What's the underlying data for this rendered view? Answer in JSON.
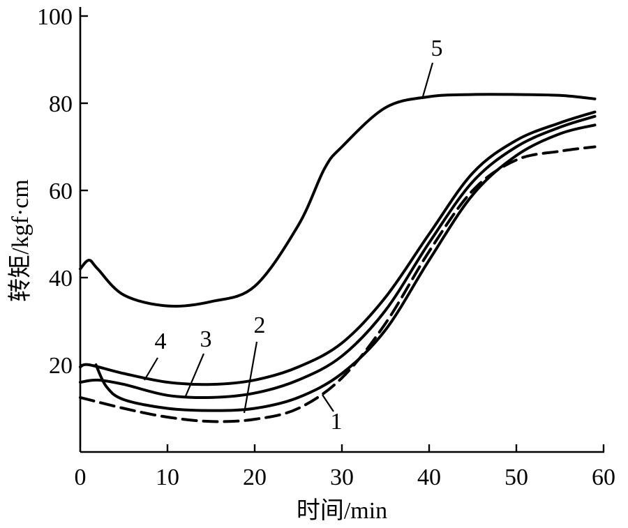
{
  "chart_data": {
    "type": "line",
    "title": "",
    "xlabel": "时间/min",
    "ylabel": "转矩/kgf·cm",
    "xlim": [
      0,
      60
    ],
    "ylim": [
      0,
      100
    ],
    "x_ticks": [
      "0",
      "10",
      "20",
      "30",
      "40",
      "50",
      "60"
    ],
    "y_ticks": [
      "20",
      "40",
      "60",
      "80",
      "100"
    ],
    "grid": false,
    "legend": "none",
    "series": [
      {
        "name": "1",
        "style": "dashed",
        "x": [
          0,
          5,
          10,
          15,
          20,
          25,
          30,
          35,
          40,
          45,
          50,
          55,
          59
        ],
        "y": [
          12.5,
          10,
          8,
          7,
          7.5,
          10,
          17,
          29.5,
          46,
          60,
          67,
          69,
          70
        ]
      },
      {
        "name": "2",
        "style": "solid",
        "x": [
          1.8,
          3,
          5,
          10,
          15,
          20,
          25,
          30,
          35,
          40,
          45,
          50,
          55,
          59
        ],
        "y": [
          20,
          15,
          12,
          10,
          9.5,
          10,
          12.5,
          18,
          28,
          44,
          59,
          68,
          73,
          75
        ]
      },
      {
        "name": "3",
        "style": "solid",
        "x": [
          0,
          2,
          5,
          10,
          15,
          20,
          25,
          30,
          35,
          40,
          45,
          50,
          55,
          59
        ],
        "y": [
          16,
          16.5,
          15.5,
          13,
          12.5,
          13.5,
          16.5,
          22,
          32.5,
          48,
          62,
          70,
          74.5,
          77
        ]
      },
      {
        "name": "4",
        "style": "solid",
        "x": [
          0,
          1,
          5,
          10,
          15,
          20,
          25,
          30,
          35,
          40,
          45,
          50,
          55,
          59
        ],
        "y": [
          19.5,
          20,
          18,
          16,
          15.5,
          16.5,
          19.5,
          25,
          35.5,
          50,
          64,
          71.5,
          75.5,
          78
        ]
      },
      {
        "name": "5",
        "style": "solid",
        "x": [
          0,
          1,
          2,
          5,
          10,
          15,
          20,
          25,
          28,
          30,
          35,
          40,
          45,
          50,
          55,
          59
        ],
        "y": [
          42,
          44,
          42,
          36,
          33.5,
          34.5,
          38,
          52,
          65,
          70,
          79,
          81.5,
          82,
          82,
          81.8,
          81
        ]
      }
    ],
    "curve_labels": [
      "1",
      "2",
      "3",
      "4",
      "5"
    ]
  }
}
